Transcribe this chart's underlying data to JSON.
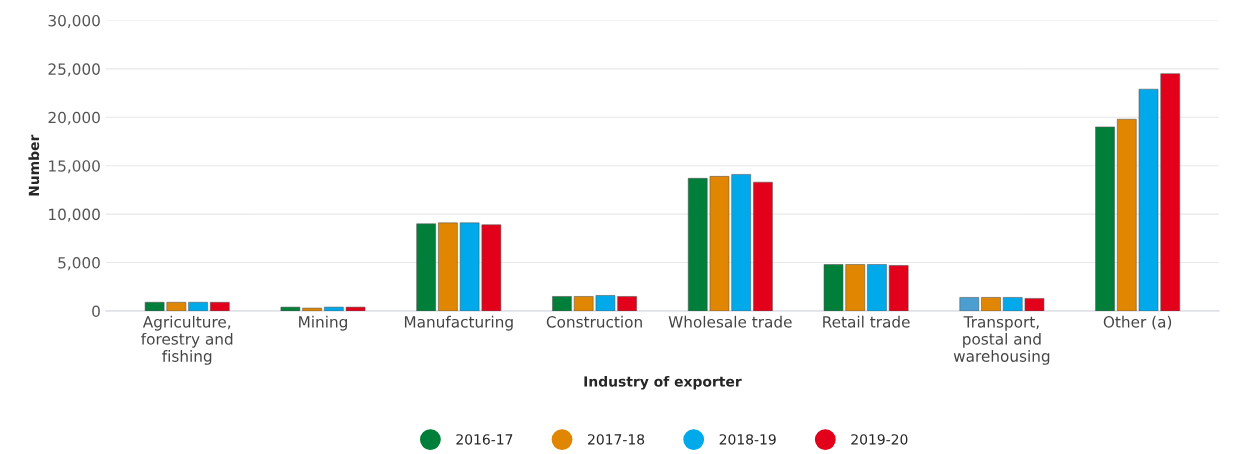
{
  "chart_data": {
    "type": "bar",
    "xlabel": "Industry of exporter",
    "ylabel": "Number",
    "categories": [
      "Agriculture,\nforestry and\nfishing",
      "Mining",
      "Manufacturing",
      "Construction",
      "Wholesale trade",
      "Retail trade",
      "Transport,\npostal and\nwarehousing",
      "Other (a)"
    ],
    "series": [
      {
        "name": "2016-17",
        "color": "#007f3a",
        "colors": [
          "#007f3a",
          "#007f3a",
          "#007f3a",
          "#007f3a",
          "#007f3a",
          "#007f3a",
          "#4a9fd0",
          "#007f3a"
        ],
        "values": [
          900,
          400,
          9000,
          1500,
          13700,
          4800,
          1400,
          19000
        ]
      },
      {
        "name": "2017-18",
        "color": "#e08600",
        "values": [
          900,
          300,
          9100,
          1500,
          13900,
          4800,
          1400,
          19800
        ]
      },
      {
        "name": "2018-19",
        "color": "#00aaea",
        "values": [
          900,
          400,
          9100,
          1600,
          14100,
          4800,
          1400,
          22900
        ]
      },
      {
        "name": "2019-20",
        "color": "#e2001a",
        "values": [
          900,
          400,
          8900,
          1500,
          13300,
          4700,
          1300,
          24500
        ]
      }
    ],
    "ylim": [
      0,
      30000
    ],
    "yticks": [
      {
        "value": 0,
        "label": "0"
      },
      {
        "value": 5000,
        "label": "5,000"
      },
      {
        "value": 10000,
        "label": "10,000"
      },
      {
        "value": 15000,
        "label": "15,000"
      },
      {
        "value": 20000,
        "label": "20,000"
      },
      {
        "value": 25000,
        "label": "25,000"
      },
      {
        "value": 30000,
        "label": "30,000"
      }
    ],
    "grid": "y",
    "legend": "bottom",
    "marker": "circle"
  }
}
